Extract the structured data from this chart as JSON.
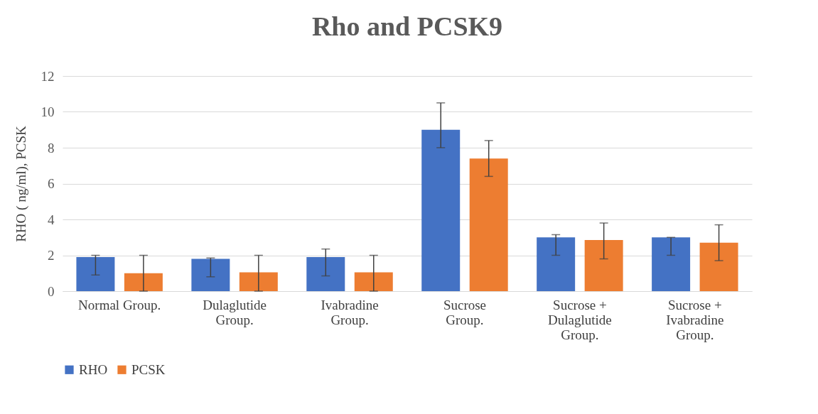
{
  "chart_data": {
    "type": "bar",
    "title": "Rho and PCSK9",
    "ylabel": "RHO ( ng/ml), PCSK",
    "categories": [
      "Normal Group.",
      "Dulaglutide Group.",
      "Ivabradine Group.",
      "Sucrose Group.",
      "Sucrose + Dulaglutide Group.",
      "Sucrose + Ivabradine Group."
    ],
    "series": [
      {
        "name": "RHO",
        "color": "#4472c4",
        "values": [
          1.9,
          1.8,
          1.9,
          9.0,
          3.0,
          3.0
        ],
        "errors": [
          [
            0.9,
            2.0
          ],
          [
            0.8,
            1.85
          ],
          [
            0.85,
            2.35
          ],
          [
            8.0,
            10.5
          ],
          [
            2.0,
            3.15
          ],
          [
            2.0,
            3.0
          ]
        ]
      },
      {
        "name": "PCSK",
        "color": "#ed7d31",
        "values": [
          1.0,
          1.05,
          1.05,
          7.4,
          2.85,
          2.7
        ],
        "errors": [
          [
            0,
            2.0
          ],
          [
            0,
            2.0
          ],
          [
            0,
            2.0
          ],
          [
            6.4,
            8.4
          ],
          [
            1.8,
            3.8
          ],
          [
            1.7,
            3.7
          ]
        ]
      }
    ],
    "ylim": [
      0,
      12
    ],
    "yticks": [
      0,
      2,
      4,
      6,
      8,
      10,
      12
    ],
    "grid": "y",
    "legend": "bottom"
  }
}
